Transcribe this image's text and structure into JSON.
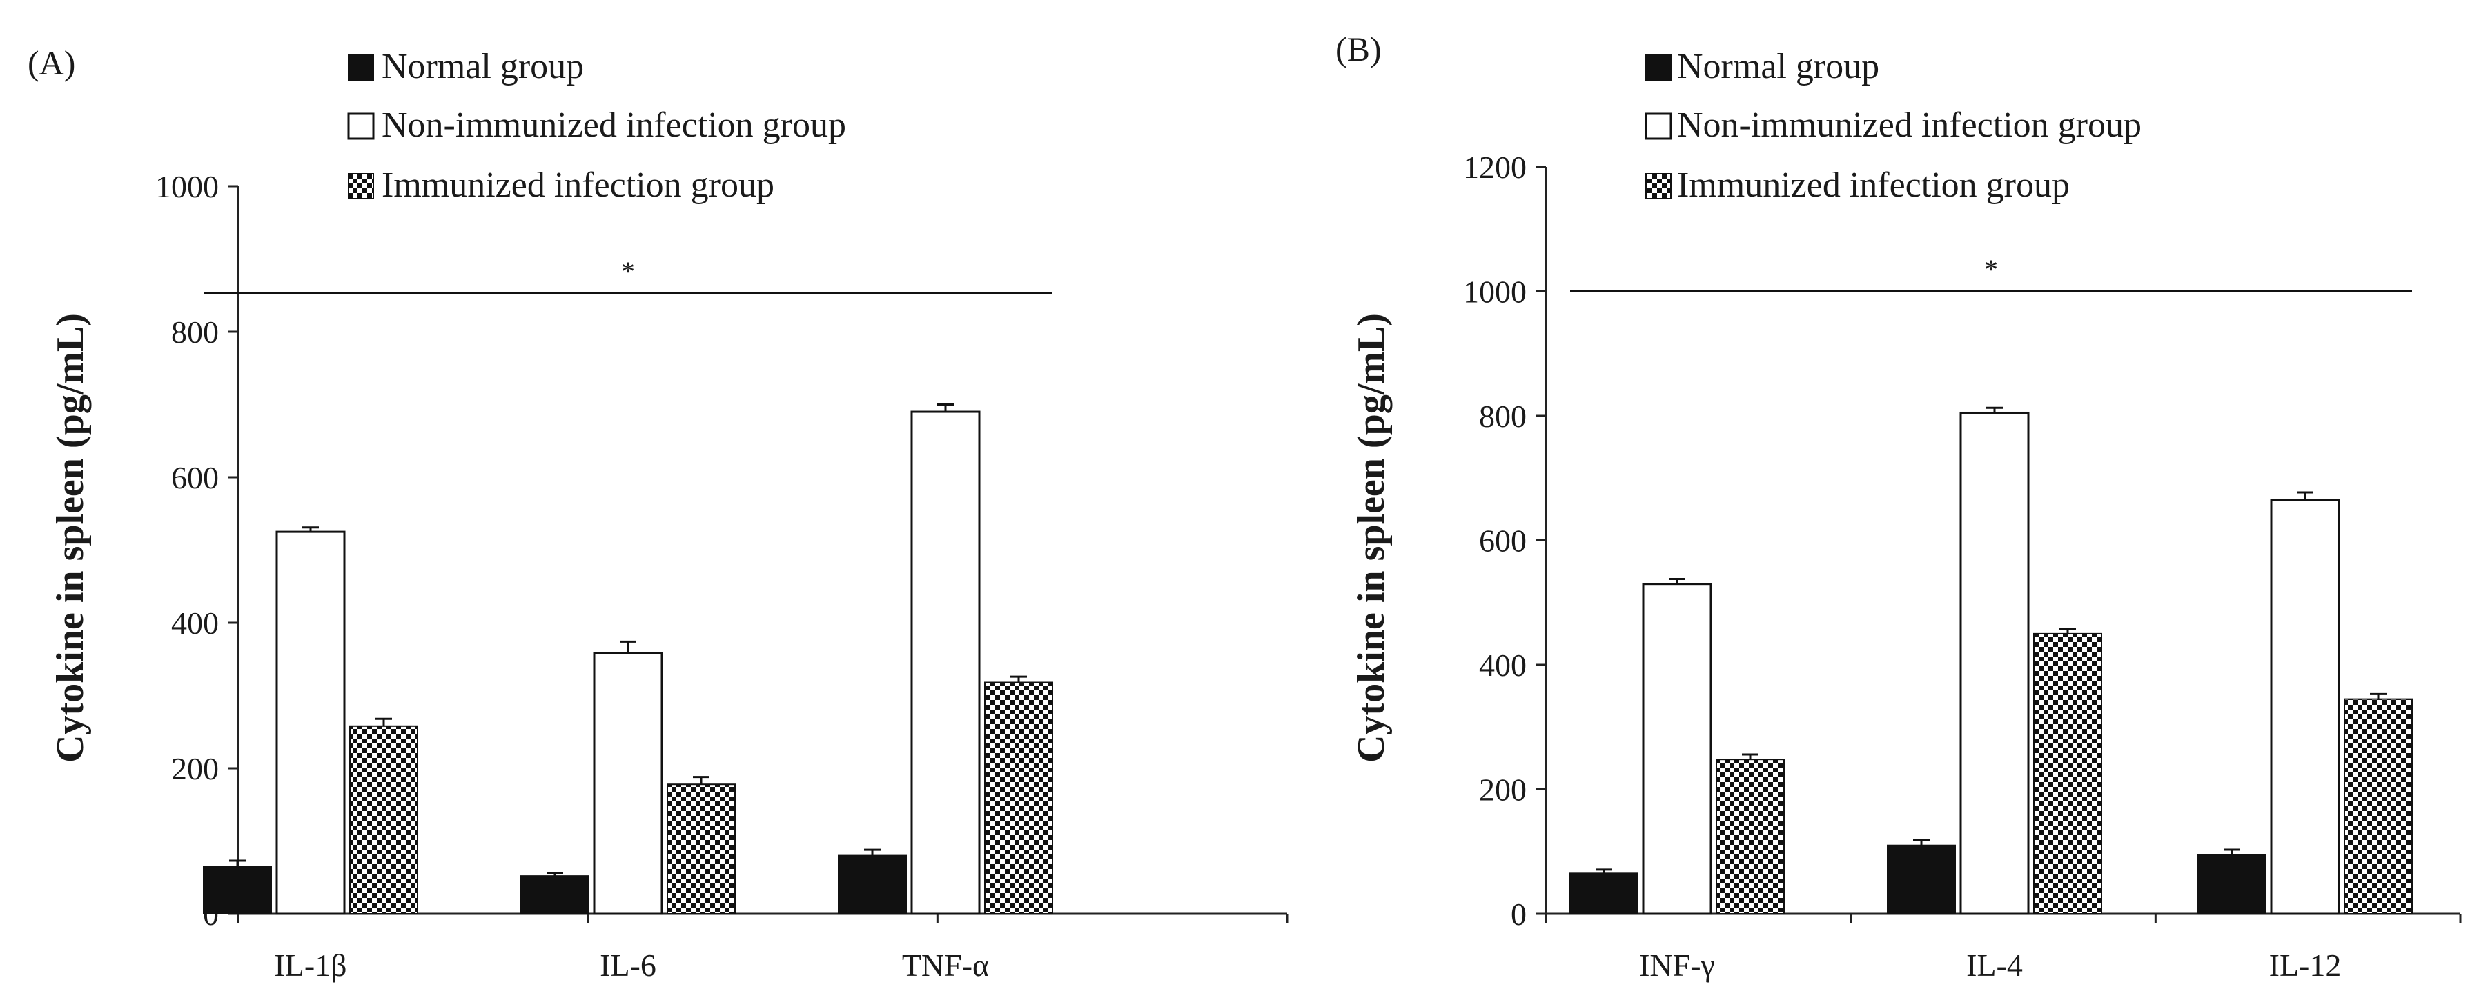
{
  "chart_data": [
    {
      "type": "bar",
      "panel_label": "(A)",
      "ylabel": "Cytokine in spleen (pg/mL)",
      "xlabel": "",
      "ylim": [
        0,
        1000
      ],
      "yticks": [
        0,
        200,
        400,
        600,
        800,
        1000
      ],
      "categories": [
        "IL-1β",
        "IL-6",
        "TNF-α"
      ],
      "series": [
        {
          "name": "Normal group",
          "values": [
            65,
            52,
            80
          ],
          "errors": [
            8,
            4,
            8
          ]
        },
        {
          "name": "Non-immunized infection group",
          "values": [
            525,
            358,
            690
          ],
          "errors": [
            6,
            16,
            10
          ]
        },
        {
          "name": "Immunized infection group",
          "values": [
            258,
            178,
            318
          ],
          "errors": [
            10,
            10,
            8
          ]
        }
      ],
      "annotation": {
        "text": "*",
        "value": 850
      },
      "legend_position": "top"
    },
    {
      "type": "bar",
      "panel_label": "(B)",
      "ylabel": "Cytokine in spleen (pg/mL)",
      "xlabel": "",
      "ylim": [
        0,
        1200
      ],
      "yticks": [
        0,
        200,
        400,
        600,
        800,
        1000,
        1200
      ],
      "categories": [
        "INF-γ",
        "IL-4",
        "IL-12"
      ],
      "series": [
        {
          "name": "Normal group",
          "values": [
            65,
            110,
            95
          ],
          "errors": [
            6,
            8,
            8
          ]
        },
        {
          "name": "Non-immunized infection group",
          "values": [
            530,
            805,
            665
          ],
          "errors": [
            8,
            8,
            12
          ]
        },
        {
          "name": "Immunized infection group",
          "values": [
            248,
            450,
            345
          ],
          "errors": [
            8,
            8,
            8
          ]
        }
      ],
      "annotation": {
        "text": "*",
        "value": 1000
      },
      "legend_position": "top"
    }
  ],
  "series_colors": {
    "normal": "#111111",
    "non_immunized": "#ffffff",
    "immunized": "checker"
  }
}
